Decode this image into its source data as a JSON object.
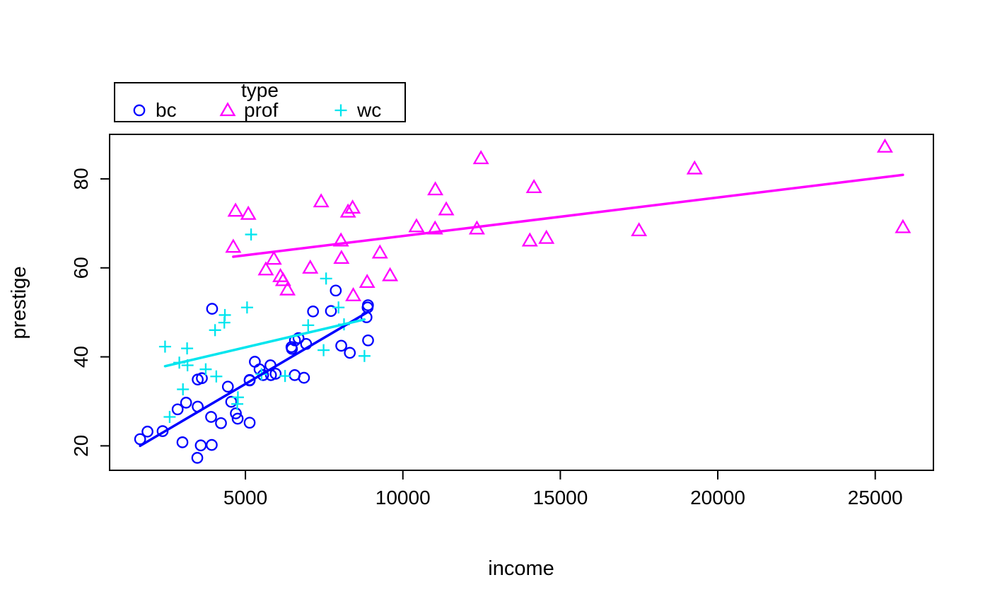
{
  "chart_data": {
    "type": "scatter",
    "title": "",
    "xlabel": "income",
    "ylabel": "prestige",
    "xlim": [
      687,
      26848
    ],
    "ylim": [
      14.5,
      90
    ],
    "x_ticks": [
      5000,
      10000,
      15000,
      20000,
      25000
    ],
    "y_ticks": [
      20,
      40,
      60,
      80
    ],
    "grid": false,
    "legend": {
      "title": "type",
      "position": "top-left",
      "entries": [
        {
          "label": "bc",
          "symbol": "circle",
          "color": "#0000ff"
        },
        {
          "label": "prof",
          "symbol": "triangle",
          "color": "#ff00ff"
        },
        {
          "label": "wc",
          "symbol": "plus",
          "color": "#00e5ee"
        }
      ]
    },
    "series": [
      {
        "name": "bc",
        "symbol": "circle",
        "color": "#0000ff",
        "points": [
          [
            3485,
            34.9
          ],
          [
            2370,
            23.3
          ],
          [
            8895,
            43.7
          ],
          [
            8891,
            51.6
          ],
          [
            3116,
            29.7
          ],
          [
            3930,
            20.2
          ],
          [
            7869,
            54.9
          ],
          [
            3000,
            20.8
          ],
          [
            3472,
            17.3
          ],
          [
            3582,
            20.1
          ],
          [
            1656,
            21.5
          ],
          [
            6860,
            35.3
          ],
          [
            5134,
            34.7
          ],
          [
            5134,
            25.2
          ],
          [
            5134,
            34.8
          ],
          [
            1890,
            23.2
          ],
          [
            4443,
            33.3
          ],
          [
            3485,
            28.8
          ],
          [
            8043,
            42.5
          ],
          [
            6686,
            44.2
          ],
          [
            6565,
            35.9
          ],
          [
            6477,
            41.8
          ],
          [
            5811,
            35.9
          ],
          [
            6573,
            43.7
          ],
          [
            3942,
            50.8
          ],
          [
            5449,
            37.2
          ],
          [
            2847,
            28.2
          ],
          [
            5795,
            38.1
          ],
          [
            7716,
            50.3
          ],
          [
            4696,
            27.3
          ],
          [
            8316,
            40.9
          ],
          [
            7147,
            50.2
          ],
          [
            8880,
            51.1
          ],
          [
            5299,
            38.9
          ],
          [
            5959,
            36.2
          ],
          [
            4549,
            29.9
          ],
          [
            6928,
            42.9
          ],
          [
            3910,
            26.5
          ],
          [
            8845,
            48.9
          ],
          [
            5562,
            35.9
          ],
          [
            4224,
            25.1
          ],
          [
            4753,
            26.1
          ],
          [
            6462,
            42.2
          ],
          [
            3617,
            35.2
          ]
        ]
      },
      {
        "name": "prof",
        "symbol": "triangle",
        "color": "#ff00ff",
        "points": [
          [
            12351,
            68.8
          ],
          [
            25879,
            69.1
          ],
          [
            9271,
            63.4
          ],
          [
            8865,
            56.8
          ],
          [
            8403,
            73.5
          ],
          [
            11030,
            77.6
          ],
          [
            8258,
            72.6
          ],
          [
            14163,
            78.1
          ],
          [
            11377,
            73.1
          ],
          [
            11023,
            68.8
          ],
          [
            5902,
            62.0
          ],
          [
            7059,
            60.0
          ],
          [
            8425,
            53.8
          ],
          [
            8049,
            62.2
          ],
          [
            7405,
            74.9
          ],
          [
            6336,
            55.1
          ],
          [
            19263,
            82.3
          ],
          [
            6112,
            58.1
          ],
          [
            9593,
            58.3
          ],
          [
            4686,
            72.8
          ],
          [
            12480,
            84.6
          ],
          [
            5648,
            59.6
          ],
          [
            8034,
            66.1
          ],
          [
            25308,
            87.2
          ],
          [
            14558,
            66.7
          ],
          [
            17498,
            68.4
          ],
          [
            4614,
            64.7
          ],
          [
            5092,
            72.1
          ],
          [
            10432,
            69.3
          ],
          [
            6197,
            57.2
          ],
          [
            14032,
            66.1
          ]
        ]
      },
      {
        "name": "wc",
        "symbol": "plus",
        "color": "#00e5ee",
        "points": [
          [
            5180,
            67.5
          ],
          [
            7562,
            57.6
          ],
          [
            4036,
            46.0
          ],
          [
            3148,
            41.9
          ],
          [
            4348,
            49.4
          ],
          [
            2448,
            42.3
          ],
          [
            4330,
            47.7
          ],
          [
            4761,
            30.9
          ],
          [
            3016,
            32.7
          ],
          [
            2901,
            38.7
          ],
          [
            5511,
            36.1
          ],
          [
            3739,
            37.2
          ],
          [
            3161,
            38.1
          ],
          [
            4741,
            29.4
          ],
          [
            5052,
            51.1
          ],
          [
            6259,
            35.7
          ],
          [
            4075,
            35.6
          ],
          [
            7482,
            41.5
          ],
          [
            8780,
            40.2
          ],
          [
            2594,
            26.5
          ],
          [
            8131,
            47.3
          ],
          [
            6992,
            47.1
          ],
          [
            7956,
            51.1
          ]
        ]
      }
    ],
    "regression_lines": [
      {
        "name": "bc",
        "color": "#0000ff",
        "x1": 1656,
        "y1": 20.0,
        "x2": 8895,
        "y2": 50.1
      },
      {
        "name": "prof",
        "color": "#ff00ff",
        "x1": 4614,
        "y1": 62.5,
        "x2": 25879,
        "y2": 80.9
      },
      {
        "name": "wc",
        "color": "#00e5ee",
        "x1": 2448,
        "y1": 37.9,
        "x2": 8780,
        "y2": 48.4
      }
    ]
  }
}
